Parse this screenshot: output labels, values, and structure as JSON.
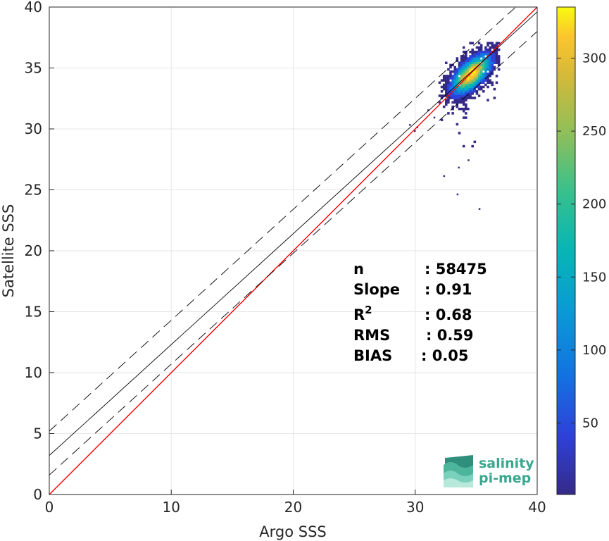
{
  "chart_data": {
    "type": "scatter",
    "subtype": "2d-density-scatter",
    "xlabel": "Argo SSS",
    "ylabel": "Satellite SSS",
    "xlim": [
      0,
      40
    ],
    "ylim": [
      0,
      40
    ],
    "xticks": [
      0,
      10,
      20,
      30,
      40
    ],
    "yticks": [
      0,
      5,
      10,
      15,
      20,
      25,
      30,
      35,
      40
    ],
    "grid": true,
    "colorbar": {
      "range": [
        1,
        335
      ],
      "ticks": [
        50,
        100,
        150,
        200,
        250,
        300
      ],
      "colormap": "parula"
    },
    "density_cluster": {
      "center": [
        34.5,
        34.4
      ],
      "core_x_range": [
        32.5,
        36.8
      ],
      "core_y_range": [
        31.5,
        37.0
      ],
      "max_count": 335
    },
    "outliers": [
      [
        29.5,
        30.4
      ],
      [
        30.1,
        30.2
      ],
      [
        31.0,
        31.6
      ],
      [
        32.3,
        26.2
      ],
      [
        33.5,
        26.9
      ],
      [
        33.4,
        24.7
      ],
      [
        34.3,
        27.5
      ],
      [
        35.2,
        23.5
      ],
      [
        29.9,
        29.9
      ],
      [
        31.5,
        31.0
      ]
    ],
    "lines": [
      {
        "name": "identity",
        "style": "solid",
        "color": "#ff0000",
        "intercept": 0,
        "slope": 1
      },
      {
        "name": "regression",
        "style": "solid",
        "color": "#000000",
        "intercept": 3.2,
        "slope": 0.91
      },
      {
        "name": "regression+2std",
        "style": "dashed",
        "color": "#000000",
        "intercept": 5.2,
        "slope": 0.91
      },
      {
        "name": "regression-2std",
        "style": "dashed",
        "color": "#000000",
        "intercept": 1.6,
        "slope": 0.91
      }
    ],
    "stats": [
      {
        "label": "n",
        "value": ": 58475"
      },
      {
        "label": "Slope",
        "value": ": 0.91"
      },
      {
        "label": "R",
        "sup": "2",
        "value": ": 0.68"
      },
      {
        "label": "RMS",
        "value": ": 0.59"
      },
      {
        "label": "BIAS",
        "value": ": 0.05"
      }
    ]
  },
  "logo": {
    "line1": "salinity",
    "line2": "pi-mep"
  }
}
